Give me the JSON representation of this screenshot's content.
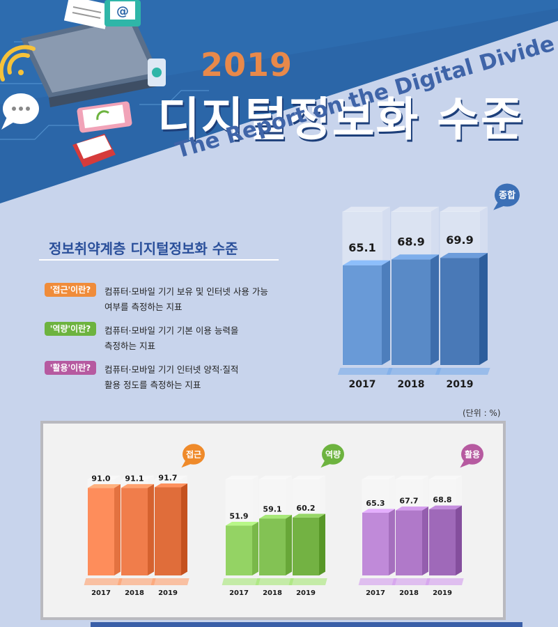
{
  "header": {
    "year": "2019",
    "title": "디지털정보화 수준",
    "subtitle_en": "The Report on the Digital Divide",
    "icon_email": "@",
    "decor_icons": [
      "laptop-icon",
      "document-icon",
      "email-icon",
      "wifi-icon",
      "chat-bubble-icon",
      "phone-icon",
      "book-icon",
      "settings-icon"
    ]
  },
  "section": {
    "title": "정보취약계층 디지털정보화 수준",
    "definitions": [
      {
        "tag": "'접근'이란?",
        "lines": [
          "컴퓨터·모바일 기기 보유 및 인터넷 사용 가능",
          "여부를 측정하는 지표"
        ],
        "color": "#f08c3a"
      },
      {
        "tag": "'역량'이란?",
        "lines": [
          "컴퓨터·모바일 기기 기본 이용 능력을",
          "측정하는 지표"
        ],
        "color": "#6db33f"
      },
      {
        "tag": "'활용'이란?",
        "lines": [
          "컴퓨터·모바일 기기 인터넷 양적·질적",
          "활용 정도를 측정하는 지표"
        ],
        "color": "#b65aa0"
      }
    ]
  },
  "unit_label": "(단위 : %)",
  "chart_data": [
    {
      "type": "bar",
      "title": "종합",
      "categories": [
        "2017",
        "2018",
        "2019"
      ],
      "values": [
        65.1,
        68.9,
        69.9
      ],
      "ylim": [
        0,
        100
      ],
      "grid": false,
      "legend": "none",
      "color": "#4a7fc2",
      "tag_color": "#3b6fb6"
    },
    {
      "type": "bar",
      "title": "접근",
      "categories": [
        "2017",
        "2018",
        "2019"
      ],
      "values": [
        91.0,
        91.1,
        91.7
      ],
      "ylim": [
        0,
        100
      ],
      "grid": false,
      "legend": "none",
      "color": "#f07038",
      "tag_color": "#ef8a2a"
    },
    {
      "type": "bar",
      "title": "역량",
      "categories": [
        "2017",
        "2018",
        "2019"
      ],
      "values": [
        51.9,
        59.1,
        60.2
      ],
      "ylim": [
        0,
        100
      ],
      "grid": false,
      "legend": "none",
      "color": "#77bd42",
      "tag_color": "#6db33f"
    },
    {
      "type": "bar",
      "title": "활용",
      "categories": [
        "2017",
        "2018",
        "2019"
      ],
      "values": [
        65.3,
        67.7,
        68.8
      ],
      "ylim": [
        0,
        100
      ],
      "grid": false,
      "legend": "none",
      "color": "#a86cc4",
      "tag_color": "#b65aa0"
    }
  ]
}
